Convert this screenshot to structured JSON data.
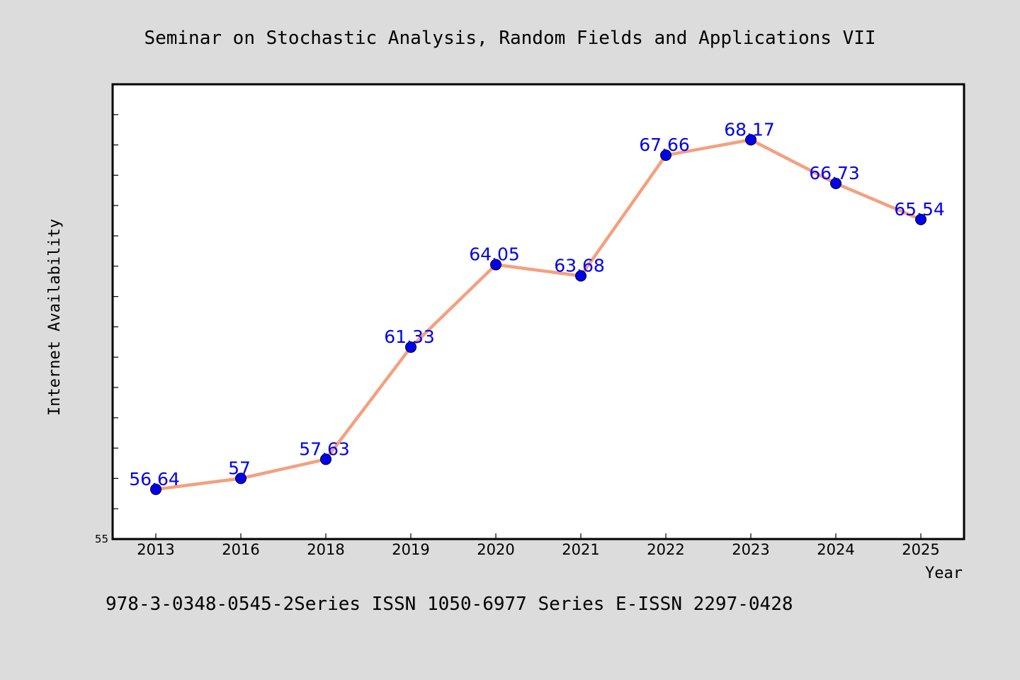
{
  "chart_data": {
    "type": "line",
    "title": "Seminar on Stochastic Analysis, Random Fields and Applications VII",
    "xlabel": "Year",
    "ylabel": "Internet Availability",
    "categories": [
      "2013",
      "2016",
      "2018",
      "2019",
      "2020",
      "2021",
      "2022",
      "2023",
      "2024",
      "2025"
    ],
    "series": [
      {
        "values": [
          56.64,
          57,
          57.63,
          61.33,
          64.05,
          63.68,
          67.66,
          68.17,
          66.73,
          65.54
        ],
        "data_labels": [
          "56.64",
          "57",
          "57.63",
          "61.33",
          "64.05",
          "63.68",
          "67.66",
          "68.17",
          "66.73",
          "65.54"
        ]
      }
    ],
    "ylim": [
      55,
      70
    ],
    "yticks": [
      55
    ],
    "ytick_labels": [
      "55"
    ],
    "grid": false,
    "legend": "none",
    "colors": {
      "line": "#f4a07e",
      "marker": "#0000ee",
      "data_label": "#0000ee",
      "plot_background": "#ffffff",
      "page_background": "#dcdcdc"
    }
  },
  "footer": {
    "text": "978-3-0348-0545-2Series ISSN 1050-6977 Series E-ISSN 2297-0428"
  }
}
